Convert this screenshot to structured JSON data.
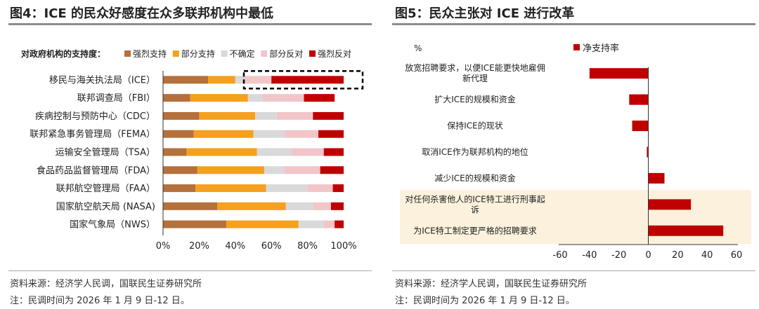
{
  "left": {
    "title": "图4：ICE 的民众好感度在众多联邦机构中最低",
    "source": "资料来源：经济学人民调，国联民生证券研究所",
    "note": "注：民调时间为 2026 年 1 月 9 日-12 日。"
  },
  "right": {
    "title": "图5：民众主张对 ICE 进行改革",
    "source": "资料来源：经济学人民调，国联民生证券研究所",
    "note": "注：民调时间为 2026 年 1 月 9 日-12 日。"
  },
  "chart_data": [
    {
      "type": "bar",
      "orientation": "horizontal",
      "stacked": true,
      "legend_title": "对政府机构的支持度：",
      "legend_placement": "top",
      "categories": [
        "移民与海关执法局（ICE）",
        "联邦调查局（FBI）",
        "疾病控制与预防中心（CDC）",
        "联邦紧急事务管理局（FEMA）",
        "运输安全管理局（TSA）",
        "食品药品监督管理局（FDA）",
        "联邦航空管理局（FAA）",
        "国家航空航天局 (NASA)",
        "国家气象局（NWS）"
      ],
      "series": [
        {
          "name": "强烈支持",
          "color": "#B5703C",
          "values": [
            25,
            15,
            20,
            17,
            13,
            19,
            18,
            30,
            35
          ]
        },
        {
          "name": "部分支持",
          "color": "#F5A01E",
          "values": [
            15,
            32,
            31,
            33,
            39,
            37,
            39,
            38,
            40
          ]
        },
        {
          "name": "不确定",
          "color": "#D9D9D9",
          "values": [
            5,
            8,
            12,
            17,
            19,
            11,
            23,
            15,
            14
          ]
        },
        {
          "name": "部分反对",
          "color": "#F2C5C9",
          "values": [
            15,
            23,
            20,
            19,
            18,
            20,
            14,
            10,
            6
          ]
        },
        {
          "name": "强烈反对",
          "color": "#C00000",
          "values": [
            40,
            17,
            17,
            14,
            11,
            13,
            6,
            7,
            5
          ]
        }
      ],
      "x_ticks": [
        "0%",
        "20%",
        "40%",
        "60%",
        "80%",
        "100%"
      ],
      "xlim": [
        0,
        100
      ],
      "highlight_category": "移民与海关执法局（ICE）",
      "grid": false
    },
    {
      "type": "bar",
      "orientation": "horizontal",
      "unit_label": "%",
      "categories": [
        "放宽招聘要求，以便ICE能更快地雇佣新代理",
        "扩大ICE的规模和资金",
        "保持ICE的现状",
        "取消ICE作为联邦机构的地位",
        "减少ICE的规模和资金",
        "对任何杀害他人的ICE特工进行刑事起诉",
        "为ICE特工制定更严格的招聘要求"
      ],
      "series": [
        {
          "name": "净支持率",
          "color": "#C00000",
          "values": [
            -40,
            -13,
            -11,
            -1,
            11,
            29,
            51
          ]
        }
      ],
      "x_ticks": [
        "-60",
        "-40",
        "-20",
        "0",
        "20",
        "40",
        "60"
      ],
      "xlim": [
        -60,
        60
      ],
      "highlighted_categories": [
        "对任何杀害他人的ICE特工进行刑事起诉",
        "为ICE特工制定更严格的招聘要求"
      ],
      "highlight_color": "#FBF1DC",
      "legend_placement": "top",
      "grid": false
    }
  ]
}
